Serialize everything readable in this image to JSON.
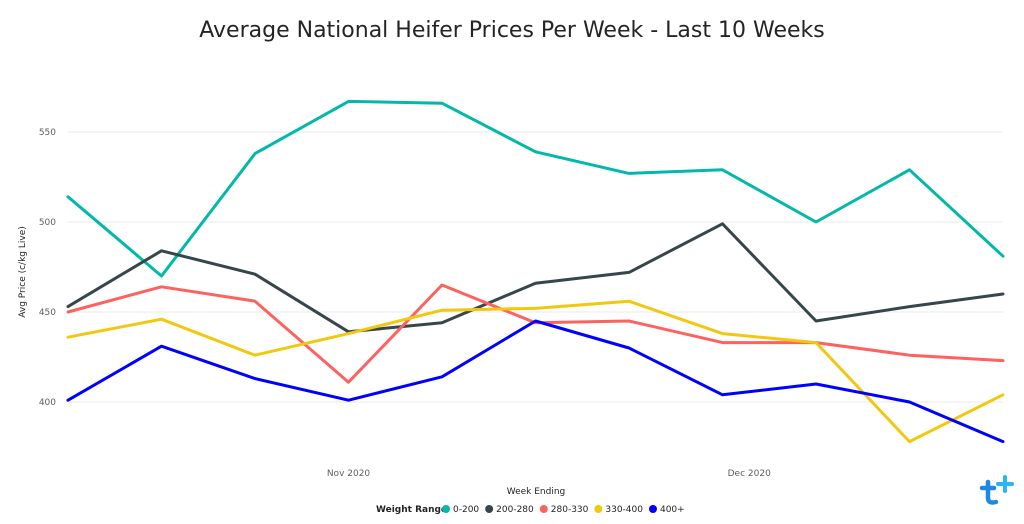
{
  "chart_data": {
    "type": "line",
    "title": "Average National Heifer Prices Per Week - Last 10 Weeks",
    "xlabel": "Week Ending",
    "ylabel": "Avg Price (c/kg Live)",
    "ylim": [
      365,
      590
    ],
    "yticks": [
      400,
      450,
      500,
      550
    ],
    "x": [
      "2020-10-11",
      "2020-10-18",
      "2020-10-25",
      "2020-11-01",
      "2020-11-08",
      "2020-11-15",
      "2020-11-22",
      "2020-11-29",
      "2020-12-06",
      "2020-12-13",
      "2020-12-20"
    ],
    "xticks": [
      {
        "date": "2020-11-01",
        "label": "Nov 2020"
      },
      {
        "date": "2020-12-01",
        "label": "Dec 2020"
      }
    ],
    "grid": true,
    "legend": {
      "title": "Weight Range",
      "position": "bottom"
    },
    "series": [
      {
        "name": "0-200",
        "color": "#01b8aa",
        "values": [
          514,
          470,
          538,
          567,
          566,
          539,
          527,
          529,
          500,
          529,
          481
        ]
      },
      {
        "name": "200-280",
        "color": "#374649",
        "values": [
          453,
          484,
          471,
          439,
          444,
          466,
          472,
          499,
          445,
          453,
          460
        ]
      },
      {
        "name": "280-330",
        "color": "#fd625e",
        "values": [
          450,
          464,
          456,
          411,
          465,
          444,
          445,
          433,
          433,
          426,
          423
        ]
      },
      {
        "name": "330-400",
        "color": "#f2c80f",
        "values": [
          436,
          446,
          426,
          438,
          451,
          452,
          456,
          438,
          433,
          378,
          404
        ]
      },
      {
        "name": "400+",
        "color": "#0000ff",
        "values": [
          401,
          431,
          413,
          401,
          414,
          445,
          430,
          404,
          410,
          400,
          378
        ]
      }
    ]
  }
}
